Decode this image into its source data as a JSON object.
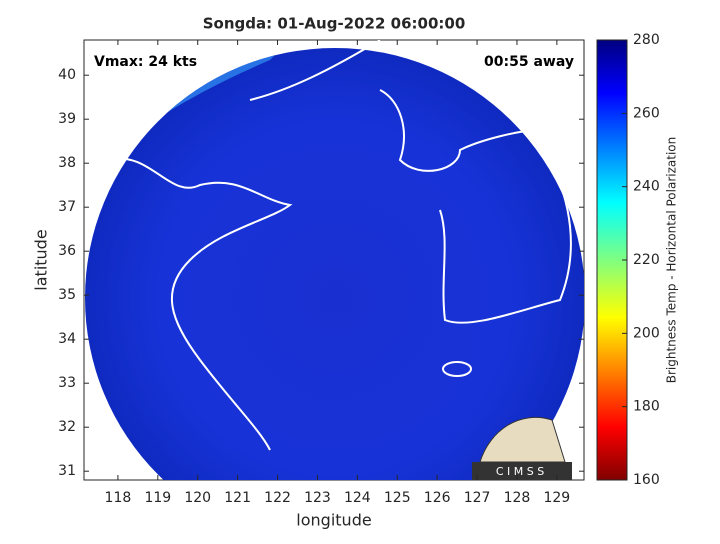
{
  "chart_data": {
    "type": "image-map",
    "title": "Songda: 01-Aug-2022 06:00:00",
    "annotations": [
      "Vmax: 24 kts",
      "00:55 away"
    ],
    "xlabel": "longitude",
    "ylabel": "latitude",
    "xlim": [
      117.15,
      129.68
    ],
    "xticks": [
      118,
      119,
      120,
      121,
      122,
      123,
      124,
      125,
      126,
      127,
      128,
      129
    ],
    "ylim": [
      30.8,
      40.8
    ],
    "yticks": [
      31,
      32,
      33,
      34,
      35,
      36,
      37,
      38,
      39,
      40
    ],
    "colorbar": {
      "label": "Brightness Temp - Horizontal Polarization",
      "lim": [
        160,
        280
      ],
      "ticks": [
        160,
        180,
        200,
        220,
        240,
        260,
        280
      ],
      "colormap": "jet"
    },
    "logo_text": "C I M S S"
  }
}
